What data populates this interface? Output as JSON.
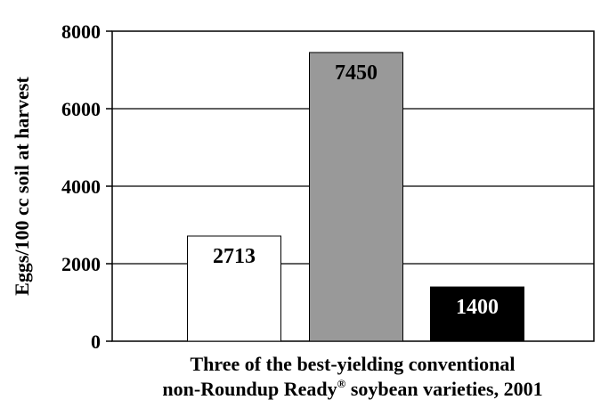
{
  "chart_data": {
    "type": "bar",
    "categories": [
      "",
      "",
      ""
    ],
    "values": [
      2713,
      7450,
      1400
    ],
    "data_labels": [
      "2713",
      "7450",
      "1400"
    ],
    "bar_colors": [
      "#ffffff",
      "#999999",
      "#000000"
    ],
    "label_colors": [
      "#000000",
      "#000000",
      "#ffffff"
    ],
    "ylabel": "Eggs/100 cc soil at harvest",
    "xlabel_line1": "Three of the best-yielding conventional",
    "xlabel_line2_pre": "non-Roundup Ready",
    "xlabel_line2_sup": "®",
    "xlabel_line2_post": " soybean varieties, 2001",
    "ylim": [
      0,
      8000
    ],
    "yticks": [
      "0",
      "2000",
      "4000",
      "6000",
      "8000"
    ],
    "ytick_values": [
      0,
      2000,
      4000,
      6000,
      8000
    ],
    "grid": true,
    "legend": "none"
  }
}
